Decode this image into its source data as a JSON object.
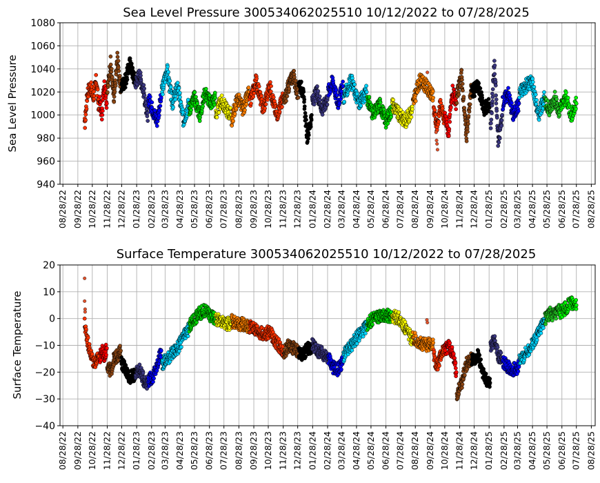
{
  "chart_data": [
    {
      "type": "scatter",
      "title": "Sea Level Pressure 300534062025510  10/12/2022 to 07/28/2025",
      "xlabel": "",
      "ylabel": "Sea Level Pressure",
      "ylim": [
        940,
        1080
      ],
      "yticks": [
        "940",
        "960",
        "980",
        "1000",
        "1020",
        "1040",
        "1060",
        "1080"
      ],
      "xlim": [
        "2022-08-22",
        "2025-09-05"
      ],
      "xticks": [
        "08/28/22",
        "09/28/22",
        "10/28/22",
        "11/28/22",
        "12/28/22",
        "01/28/23",
        "02/28/23",
        "03/28/23",
        "04/28/23",
        "05/28/23",
        "06/28/23",
        "07/28/23",
        "08/28/23",
        "09/28/23",
        "10/28/23",
        "11/28/23",
        "12/28/23",
        "01/28/24",
        "02/28/24",
        "03/28/24",
        "04/28/24",
        "05/28/24",
        "06/28/24",
        "07/28/24",
        "08/28/24",
        "09/28/24",
        "10/28/24",
        "11/28/24",
        "12/28/24",
        "01/28/25",
        "02/28/25",
        "03/28/25",
        "04/28/25",
        "05/28/25",
        "06/28/25",
        "07/28/25",
        "08/28/25"
      ],
      "grid": true,
      "series": [
        {
          "color": "#ff3300",
          "x": [
            "2022-10-12",
            "2022-10-18",
            "2022-10-24",
            "2022-10-30",
            "2022-11-05",
            "2022-11-11"
          ],
          "y": [
            990,
            1020,
            1025,
            1015,
            1030,
            1005
          ]
        },
        {
          "color": "#ff0000",
          "x": [
            "2022-11-12",
            "2022-11-17",
            "2022-11-22",
            "2022-11-27"
          ],
          "y": [
            1012,
            1000,
            1030,
            1010
          ]
        },
        {
          "color": "#8b4513",
          "x": [
            "2022-11-28",
            "2022-12-05",
            "2022-12-12",
            "2022-12-19",
            "2022-12-26"
          ],
          "y": [
            1020,
            1045,
            1012,
            1050,
            1020
          ]
        },
        {
          "color": "#000000",
          "x": [
            "2022-12-27",
            "2023-01-05",
            "2023-01-14",
            "2023-01-24"
          ],
          "y": [
            1025,
            1030,
            1045,
            1030
          ]
        },
        {
          "color": "#3b3780",
          "x": [
            "2023-01-25",
            "2023-02-03",
            "2023-02-12",
            "2023-02-20"
          ],
          "y": [
            1028,
            1035,
            1020,
            995
          ]
        },
        {
          "color": "#0000ff",
          "x": [
            "2023-02-21",
            "2023-03-02",
            "2023-03-11",
            "2023-03-20"
          ],
          "y": [
            1015,
            1005,
            995,
            1015
          ]
        },
        {
          "color": "#00d5ff",
          "x": [
            "2023-03-21",
            "2023-04-01",
            "2023-04-12",
            "2023-04-23",
            "2023-05-05",
            "2023-05-16"
          ],
          "y": [
            1020,
            1040,
            1010,
            1025,
            995,
            1010
          ]
        },
        {
          "color": "#00dd00",
          "x": [
            "2023-05-17",
            "2023-05-28",
            "2023-06-08",
            "2023-06-19",
            "2023-06-30",
            "2023-07-10"
          ],
          "y": [
            1005,
            1015,
            1000,
            1020,
            1010,
            1015
          ]
        },
        {
          "color": "#ffff00",
          "x": [
            "2023-07-11",
            "2023-07-22",
            "2023-08-02",
            "2023-08-12"
          ],
          "y": [
            1000,
            1012,
            1005,
            1000
          ]
        },
        {
          "color": "#ff8000",
          "x": [
            "2023-08-13",
            "2023-08-25",
            "2023-09-06",
            "2023-09-18"
          ],
          "y": [
            995,
            1015,
            1005,
            1020
          ]
        },
        {
          "color": "#ff3300",
          "x": [
            "2023-09-19",
            "2023-10-03",
            "2023-10-17",
            "2023-10-31",
            "2023-11-14",
            "2023-11-28"
          ],
          "y": [
            1010,
            1030,
            1005,
            1025,
            1000,
            1015
          ]
        },
        {
          "color": "#8b4513",
          "x": [
            "2023-11-29",
            "2023-12-09",
            "2023-12-19",
            "2023-12-29"
          ],
          "y": [
            1010,
            1025,
            1035,
            1015
          ]
        },
        {
          "color": "#000000",
          "x": [
            "2023-12-30",
            "2024-01-08",
            "2024-01-17",
            "2024-01-26"
          ],
          "y": [
            1030,
            1020,
            980,
            1000
          ]
        },
        {
          "color": "#3b3780",
          "x": [
            "2024-01-27",
            "2024-02-06",
            "2024-02-17",
            "2024-02-28"
          ],
          "y": [
            1010,
            1020,
            1005,
            1015
          ]
        },
        {
          "color": "#0000ff",
          "x": [
            "2024-02-29",
            "2024-03-10",
            "2024-03-20",
            "2024-03-31"
          ],
          "y": [
            1020,
            1030,
            1010,
            1025
          ]
        },
        {
          "color": "#00d5ff",
          "x": [
            "2024-04-01",
            "2024-04-17",
            "2024-05-03",
            "2024-05-19"
          ],
          "y": [
            1015,
            1030,
            1010,
            1020
          ]
        },
        {
          "color": "#00dd00",
          "x": [
            "2024-05-20",
            "2024-06-02",
            "2024-06-15",
            "2024-06-28",
            "2024-07-10"
          ],
          "y": [
            1015,
            1000,
            1010,
            995,
            1005
          ]
        },
        {
          "color": "#ffff00",
          "x": [
            "2024-07-11",
            "2024-07-25",
            "2024-08-08",
            "2024-08-22"
          ],
          "y": [
            1010,
            1000,
            995,
            1005
          ]
        },
        {
          "color": "#ff8000",
          "x": [
            "2024-08-23",
            "2024-09-06",
            "2024-09-20",
            "2024-10-04"
          ],
          "y": [
            1010,
            1030,
            1025,
            1015
          ]
        },
        {
          "color": "#ff3300",
          "x": [
            "2024-10-05",
            "2024-10-12",
            "2024-10-19",
            "2024-10-27"
          ],
          "y": [
            1005,
            990,
            1010,
            995
          ]
        },
        {
          "color": "#ff0000",
          "x": [
            "2024-10-28",
            "2024-11-05",
            "2024-11-13",
            "2024-11-21"
          ],
          "y": [
            1000,
            985,
            1020,
            1010
          ]
        },
        {
          "color": "#8b4513",
          "x": [
            "2024-11-22",
            "2024-12-02",
            "2024-12-12",
            "2024-12-22"
          ],
          "y": [
            1015,
            1035,
            980,
            1025
          ]
        },
        {
          "color": "#000000",
          "x": [
            "2024-12-23",
            "2025-01-05",
            "2025-01-18",
            "2025-01-30"
          ],
          "y": [
            1020,
            1025,
            1005,
            1010
          ]
        },
        {
          "color": "#3b3780",
          "x": [
            "2025-01-31",
            "2025-02-08",
            "2025-02-16",
            "2025-02-24"
          ],
          "y": [
            990,
            1045,
            975,
            1000
          ]
        },
        {
          "color": "#0000ff",
          "x": [
            "2025-02-25",
            "2025-03-08",
            "2025-03-19",
            "2025-03-31"
          ],
          "y": [
            1010,
            1020,
            1000,
            1010
          ]
        },
        {
          "color": "#00d5ff",
          "x": [
            "2025-04-01",
            "2025-04-14",
            "2025-04-27",
            "2025-05-10",
            "2025-05-23"
          ],
          "y": [
            1020,
            1025,
            1030,
            1000,
            1015
          ]
        },
        {
          "color": "#22cc22",
          "x": [
            "2025-05-24",
            "2025-06-03",
            "2025-06-13",
            "2025-06-23"
          ],
          "y": [
            1010,
            1005,
            1015,
            1000
          ]
        },
        {
          "color": "#00ff00",
          "x": [
            "2025-06-24",
            "2025-07-06",
            "2025-07-18",
            "2025-07-28"
          ],
          "y": [
            1005,
            1015,
            1000,
            1010
          ]
        }
      ],
      "outliers": [
        {
          "color": "#e0502a",
          "x": [
            "2024-09-22",
            "2024-10-10",
            "2024-10-11",
            "2024-10-12",
            "2024-10-13"
          ],
          "y": [
            1037,
            985,
            978,
            975,
            970
          ]
        }
      ]
    },
    {
      "type": "scatter",
      "title": "Surface Temperature 300534062025510  10/12/2022 to 07/28/2025",
      "xlabel": "",
      "ylabel": "Surface Temperature",
      "ylim": [
        -40,
        20
      ],
      "yticks": [
        "−40",
        "−30",
        "−20",
        "−10",
        "0",
        "10",
        "20"
      ],
      "xlim": [
        "2022-08-22",
        "2025-09-05"
      ],
      "xticks": [
        "08/28/22",
        "09/28/22",
        "10/28/22",
        "11/28/22",
        "12/28/22",
        "01/28/23",
        "02/28/23",
        "03/28/23",
        "04/28/23",
        "05/28/23",
        "06/28/23",
        "07/28/23",
        "08/28/23",
        "09/28/23",
        "10/28/23",
        "11/28/23",
        "12/28/23",
        "01/28/24",
        "02/28/24",
        "03/28/24",
        "04/28/24",
        "05/28/24",
        "06/28/24",
        "07/28/24",
        "08/28/24",
        "09/28/24",
        "10/28/24",
        "11/28/24",
        "12/28/24",
        "01/28/25",
        "02/28/25",
        "03/28/25",
        "04/28/25",
        "05/28/25",
        "06/28/25",
        "07/28/25",
        "08/28/25"
      ],
      "grid": true,
      "series": [
        {
          "color": "#ff3300",
          "x": [
            "2022-10-12",
            "2022-10-18",
            "2022-10-24",
            "2022-10-30",
            "2022-11-05",
            "2022-11-11"
          ],
          "y": [
            -2,
            -8,
            -13,
            -16,
            -16,
            -14
          ]
        },
        {
          "color": "#ff0000",
          "x": [
            "2022-11-12",
            "2022-11-17",
            "2022-11-22",
            "2022-11-27"
          ],
          "y": [
            -15,
            -12,
            -14,
            -11
          ]
        },
        {
          "color": "#8b4513",
          "x": [
            "2022-11-28",
            "2022-12-05",
            "2022-12-12",
            "2022-12-19",
            "2022-12-26"
          ],
          "y": [
            -17,
            -20,
            -15,
            -14,
            -12
          ]
        },
        {
          "color": "#000000",
          "x": [
            "2022-12-27",
            "2023-01-05",
            "2023-01-14",
            "2023-01-24"
          ],
          "y": [
            -16,
            -19,
            -22,
            -21
          ]
        },
        {
          "color": "#3b3780",
          "x": [
            "2023-01-25",
            "2023-02-03",
            "2023-02-12",
            "2023-02-20"
          ],
          "y": [
            -21,
            -19,
            -23,
            -24
          ]
        },
        {
          "color": "#0000ff",
          "x": [
            "2023-02-21",
            "2023-03-02",
            "2023-03-11",
            "2023-03-20"
          ],
          "y": [
            -23,
            -22,
            -18,
            -12
          ]
        },
        {
          "color": "#00d5ff",
          "x": [
            "2023-03-21",
            "2023-04-01",
            "2023-04-12",
            "2023-04-23",
            "2023-05-05",
            "2023-05-16"
          ],
          "y": [
            -17,
            -15,
            -13,
            -11,
            -7,
            -4
          ]
        },
        {
          "color": "#00dd00",
          "x": [
            "2023-05-17",
            "2023-05-28",
            "2023-06-08",
            "2023-06-19",
            "2023-06-30",
            "2023-07-10"
          ],
          "y": [
            -3,
            0,
            2,
            3,
            1,
            0
          ]
        },
        {
          "color": "#ffff00",
          "x": [
            "2023-07-11",
            "2023-07-22",
            "2023-08-02",
            "2023-08-12"
          ],
          "y": [
            0,
            -1,
            -2,
            -2
          ]
        },
        {
          "color": "#ff8000",
          "x": [
            "2023-08-13",
            "2023-08-25",
            "2023-09-06",
            "2023-09-18"
          ],
          "y": [
            -1,
            -2,
            -2,
            -3
          ]
        },
        {
          "color": "#ff3300",
          "x": [
            "2023-09-19",
            "2023-10-03",
            "2023-10-17",
            "2023-10-31",
            "2023-11-14",
            "2023-11-28"
          ],
          "y": [
            -3,
            -4,
            -6,
            -5,
            -9,
            -12
          ]
        },
        {
          "color": "#8b4513",
          "x": [
            "2023-11-29",
            "2023-12-09",
            "2023-12-19",
            "2023-12-29"
          ],
          "y": [
            -13,
            -10,
            -11,
            -12
          ]
        },
        {
          "color": "#000000",
          "x": [
            "2023-12-30",
            "2024-01-08",
            "2024-01-17",
            "2024-01-26"
          ],
          "y": [
            -13,
            -14,
            -11,
            -12
          ]
        },
        {
          "color": "#3b3780",
          "x": [
            "2024-01-27",
            "2024-02-06",
            "2024-02-17",
            "2024-02-28"
          ],
          "y": [
            -9,
            -12,
            -13,
            -15
          ]
        },
        {
          "color": "#0000ff",
          "x": [
            "2024-02-29",
            "2024-03-10",
            "2024-03-20",
            "2024-03-31"
          ],
          "y": [
            -14,
            -18,
            -19,
            -16
          ]
        },
        {
          "color": "#00d5ff",
          "x": [
            "2024-04-01",
            "2024-04-17",
            "2024-05-03",
            "2024-05-19"
          ],
          "y": [
            -14,
            -10,
            -6,
            -3
          ]
        },
        {
          "color": "#00dd00",
          "x": [
            "2024-05-20",
            "2024-06-02",
            "2024-06-15",
            "2024-06-28",
            "2024-07-10"
          ],
          "y": [
            -2,
            0,
            1,
            1,
            1
          ]
        },
        {
          "color": "#ffff00",
          "x": [
            "2024-07-11",
            "2024-07-25",
            "2024-08-08",
            "2024-08-22"
          ],
          "y": [
            1,
            0,
            -4,
            -8
          ]
        },
        {
          "color": "#ff8000",
          "x": [
            "2024-08-23",
            "2024-09-06",
            "2024-09-20",
            "2024-10-04"
          ],
          "y": [
            -7,
            -9,
            -10,
            -9
          ]
        },
        {
          "color": "#ff3300",
          "x": [
            "2024-10-05",
            "2024-10-12",
            "2024-10-19",
            "2024-10-27"
          ],
          "y": [
            -14,
            -18,
            -14,
            -11
          ]
        },
        {
          "color": "#ff0000",
          "x": [
            "2024-10-28",
            "2024-11-05",
            "2024-11-13",
            "2024-11-21"
          ],
          "y": [
            -12,
            -10,
            -13,
            -20
          ]
        },
        {
          "color": "#8b4513",
          "x": [
            "2024-11-22",
            "2024-12-02",
            "2024-12-12",
            "2024-12-22"
          ],
          "y": [
            -28,
            -24,
            -17,
            -15
          ]
        },
        {
          "color": "#000000",
          "x": [
            "2024-12-23",
            "2025-01-05",
            "2025-01-18",
            "2025-01-30"
          ],
          "y": [
            -16,
            -14,
            -22,
            -24
          ]
        },
        {
          "color": "#3b3780",
          "x": [
            "2025-01-31",
            "2025-02-08",
            "2025-02-16",
            "2025-02-24"
          ],
          "y": [
            -11,
            -8,
            -14,
            -15
          ]
        },
        {
          "color": "#0000ff",
          "x": [
            "2025-02-25",
            "2025-03-08",
            "2025-03-19",
            "2025-03-31"
          ],
          "y": [
            -16,
            -18,
            -19,
            -18
          ]
        },
        {
          "color": "#00d5ff",
          "x": [
            "2025-04-01",
            "2025-04-14",
            "2025-04-27",
            "2025-05-10",
            "2025-05-23"
          ],
          "y": [
            -16,
            -13,
            -10,
            -5,
            -1
          ]
        },
        {
          "color": "#22cc22",
          "x": [
            "2025-05-24",
            "2025-06-03",
            "2025-06-13",
            "2025-06-23"
          ],
          "y": [
            0,
            2,
            1,
            3
          ]
        },
        {
          "color": "#00ff00",
          "x": [
            "2025-06-24",
            "2025-07-06",
            "2025-07-18",
            "2025-07-28"
          ],
          "y": [
            2,
            4,
            6,
            5
          ]
        }
      ],
      "outliers": [
        {
          "color": "#e0502a",
          "x": [
            "2022-10-12",
            "2022-10-12",
            "2022-10-13",
            "2022-10-13",
            "2024-09-21",
            "2024-09-22"
          ],
          "y": [
            15,
            6.5,
            3.5,
            2.5,
            -0.5,
            -1.5
          ]
        }
      ]
    }
  ]
}
